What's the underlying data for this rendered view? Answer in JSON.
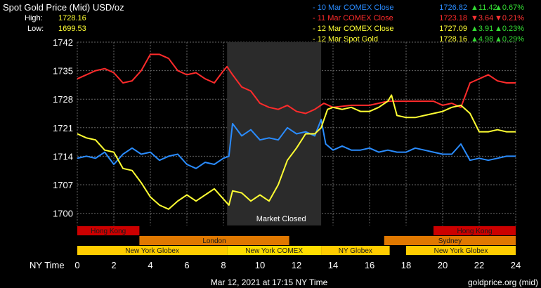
{
  "header": {
    "title": "Spot Gold Price (Mid) USD/oz",
    "high_label": "High:",
    "high_value": "1728.16",
    "low_label": "Low:",
    "low_value": "1699.53"
  },
  "legend": [
    {
      "name": "10 Mar COMEX Close",
      "value": "1726.82",
      "arrow": "▲",
      "change": "11.42",
      "pct_arrow": "▲",
      "pct": "0.67%",
      "color": "#2a8cff",
      "change_color": "#33dd33"
    },
    {
      "name": "11 Mar COMEX Close",
      "value": "1723.18",
      "arrow": "▼",
      "change": "3.64",
      "pct_arrow": "▼",
      "pct": "0.21%",
      "color": "#ff2b2b",
      "change_color": "#ff3333"
    },
    {
      "name": "12 Mar COMEX Close",
      "value": "1727.09",
      "arrow": "▲",
      "change": "3.91",
      "pct_arrow": "▲",
      "pct": "0.23%",
      "color": "#ffff33",
      "change_color": "#33dd33"
    },
    {
      "name": "12 Mar Spot Gold",
      "value": "1728.16",
      "arrow": "▲",
      "change": "4.98",
      "pct_arrow": "▲",
      "pct": "0.29%",
      "color": "#ffff33",
      "change_color": "#33dd33"
    }
  ],
  "footer": {
    "timestamp": "Mar 12, 2021 at 17:15 NY Time",
    "source": "goldprice.org (mid)"
  },
  "chart_data": {
    "type": "line",
    "xlabel": "NY Time",
    "ylabel": "",
    "xlim": [
      0,
      24
    ],
    "ylim": [
      1697,
      1742
    ],
    "x_ticks": [
      0,
      2,
      4,
      6,
      8,
      10,
      12,
      14,
      16,
      18,
      20,
      22,
      24
    ],
    "y_ticks": [
      1700,
      1707,
      1714,
      1721,
      1728,
      1735,
      1742
    ],
    "grid": true,
    "shaded_region": {
      "x_start": 8.2,
      "x_end": 13.35,
      "label": "Market Closed"
    },
    "series": [
      {
        "name": "10 Mar COMEX Close",
        "color": "#2a8cff",
        "points": [
          [
            0,
            1713.5
          ],
          [
            0.5,
            1714
          ],
          [
            1,
            1713.5
          ],
          [
            1.5,
            1715
          ],
          [
            2,
            1712
          ],
          [
            2.5,
            1714.5
          ],
          [
            3,
            1716
          ],
          [
            3.5,
            1714.5
          ],
          [
            4,
            1715
          ],
          [
            4.5,
            1713
          ],
          [
            5,
            1714
          ],
          [
            5.5,
            1714.5
          ],
          [
            6,
            1712
          ],
          [
            6.5,
            1711
          ],
          [
            7,
            1712.5
          ],
          [
            7.5,
            1712
          ],
          [
            8,
            1713.5
          ],
          [
            8.3,
            1714
          ],
          [
            8.5,
            1722
          ],
          [
            9,
            1719
          ],
          [
            9.5,
            1720.5
          ],
          [
            10,
            1718
          ],
          [
            10.5,
            1718.5
          ],
          [
            11,
            1718
          ],
          [
            11.5,
            1721
          ],
          [
            12,
            1719.5
          ],
          [
            12.5,
            1720
          ],
          [
            13,
            1719
          ],
          [
            13.35,
            1723
          ],
          [
            13.6,
            1717
          ],
          [
            14,
            1715.5
          ],
          [
            14.5,
            1716.5
          ],
          [
            15,
            1715.5
          ],
          [
            15.5,
            1715.5
          ],
          [
            16,
            1716
          ],
          [
            16.5,
            1715
          ],
          [
            17,
            1715.5
          ],
          [
            17.5,
            1715
          ],
          [
            18,
            1715
          ],
          [
            18.5,
            1716
          ],
          [
            19,
            1715.5
          ],
          [
            19.5,
            1715
          ],
          [
            20,
            1714.5
          ],
          [
            20.5,
            1714.5
          ],
          [
            21,
            1717
          ],
          [
            21.5,
            1713
          ],
          [
            22,
            1713.5
          ],
          [
            22.5,
            1713
          ],
          [
            23,
            1713.5
          ],
          [
            23.5,
            1714
          ],
          [
            24,
            1714
          ]
        ]
      },
      {
        "name": "11 Mar COMEX Close",
        "color": "#ff2b2b",
        "points": [
          [
            0,
            1733
          ],
          [
            0.5,
            1734
          ],
          [
            1,
            1735
          ],
          [
            1.5,
            1735.5
          ],
          [
            2,
            1734.5
          ],
          [
            2.5,
            1732
          ],
          [
            3,
            1732.5
          ],
          [
            3.5,
            1735
          ],
          [
            4,
            1739
          ],
          [
            4.5,
            1739
          ],
          [
            5,
            1738
          ],
          [
            5.5,
            1735
          ],
          [
            6,
            1734
          ],
          [
            6.5,
            1734.5
          ],
          [
            7,
            1733
          ],
          [
            7.5,
            1732
          ],
          [
            8,
            1735
          ],
          [
            8.2,
            1736
          ],
          [
            8.5,
            1734
          ],
          [
            9,
            1731
          ],
          [
            9.5,
            1730
          ],
          [
            10,
            1727
          ],
          [
            10.5,
            1726
          ],
          [
            11,
            1725.5
          ],
          [
            11.5,
            1726.5
          ],
          [
            12,
            1725
          ],
          [
            12.5,
            1724.5
          ],
          [
            13,
            1725.5
          ],
          [
            13.5,
            1727
          ],
          [
            14,
            1726
          ],
          [
            15,
            1726.5
          ],
          [
            16,
            1726.5
          ],
          [
            17,
            1727.5
          ],
          [
            18,
            1727.5
          ],
          [
            19,
            1727.5
          ],
          [
            19.5,
            1727.5
          ],
          [
            20,
            1726.5
          ],
          [
            20.5,
            1727
          ],
          [
            21,
            1726
          ],
          [
            21.5,
            1732
          ],
          [
            22,
            1733
          ],
          [
            22.5,
            1734
          ],
          [
            23,
            1732.5
          ],
          [
            23.5,
            1732
          ],
          [
            24,
            1732
          ]
        ]
      },
      {
        "name": "12 Mar Spot Gold",
        "color": "#ffff33",
        "points": [
          [
            0,
            1719.5
          ],
          [
            0.5,
            1718.5
          ],
          [
            1,
            1718
          ],
          [
            1.5,
            1715.5
          ],
          [
            2,
            1715
          ],
          [
            2.5,
            1711
          ],
          [
            3,
            1710.5
          ],
          [
            3.5,
            1707.5
          ],
          [
            4,
            1704
          ],
          [
            4.5,
            1702
          ],
          [
            5,
            1701
          ],
          [
            5.5,
            1703
          ],
          [
            6,
            1704.5
          ],
          [
            6.5,
            1703
          ],
          [
            7,
            1704.5
          ],
          [
            7.5,
            1706
          ],
          [
            8,
            1703.5
          ],
          [
            8.3,
            1702
          ],
          [
            8.5,
            1705.5
          ],
          [
            9,
            1705
          ],
          [
            9.5,
            1703
          ],
          [
            10,
            1704.5
          ],
          [
            10.5,
            1703
          ],
          [
            11,
            1707
          ],
          [
            11.5,
            1713
          ],
          [
            12,
            1716
          ],
          [
            12.5,
            1719.5
          ],
          [
            13,
            1719.5
          ],
          [
            13.35,
            1721
          ],
          [
            13.7,
            1725.5
          ],
          [
            14,
            1726
          ],
          [
            14.5,
            1725.5
          ],
          [
            15,
            1726
          ],
          [
            15.5,
            1725
          ],
          [
            16,
            1725
          ],
          [
            16.5,
            1726
          ],
          [
            17,
            1727.5
          ],
          [
            17.2,
            1729
          ],
          [
            17.5,
            1724
          ],
          [
            18,
            1723.5
          ],
          [
            18.5,
            1723.5
          ],
          [
            19,
            1724
          ],
          [
            19.5,
            1724.5
          ],
          [
            20,
            1725
          ],
          [
            20.5,
            1726
          ],
          [
            21,
            1726.5
          ],
          [
            21.5,
            1724.5
          ],
          [
            22,
            1720
          ],
          [
            22.5,
            1720
          ],
          [
            23,
            1720.5
          ],
          [
            23.5,
            1720
          ],
          [
            24,
            1720
          ]
        ]
      }
    ],
    "sessions": [
      {
        "label": "Hong Kong",
        "row": 0,
        "start": 0,
        "end": 3.4,
        "color": "#cc0000"
      },
      {
        "label": "Hong Kong",
        "row": 0,
        "start": 19.5,
        "end": 24,
        "color": "#cc0000"
      },
      {
        "label": "London",
        "row": 1,
        "start": 3.4,
        "end": 11.6,
        "color": "#e07800"
      },
      {
        "label": "Sydney",
        "row": 1,
        "start": 16.8,
        "end": 24,
        "color": "#e07800"
      },
      {
        "label": "New York Globex",
        "row": 2,
        "start": 0,
        "end": 8.2,
        "color": "#ffcc00"
      },
      {
        "label": "New York COMEX",
        "row": 2,
        "start": 8.2,
        "end": 13.35,
        "color": "#ffdd00"
      },
      {
        "label": "NY Globex",
        "row": 2,
        "start": 13.35,
        "end": 17.1,
        "color": "#ffcc00"
      },
      {
        "label": "New York Globex",
        "row": 2,
        "start": 18,
        "end": 24,
        "color": "#ffcc00"
      }
    ]
  }
}
